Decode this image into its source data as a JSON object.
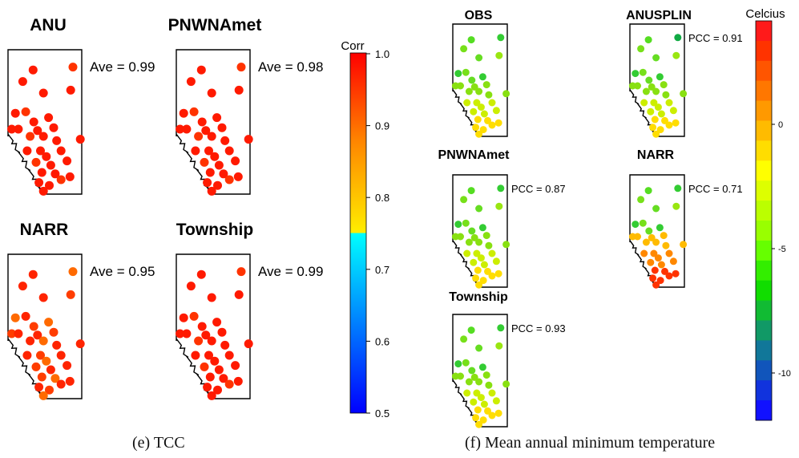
{
  "panel_e": {
    "caption": "(e) TCC",
    "legend_title": "Corr",
    "legend_ticks": [
      "1.0",
      "0.9",
      "0.8",
      "0.7",
      "0.6",
      "0.5"
    ],
    "maps": [
      {
        "key": "anu",
        "title": "ANU",
        "stat": "Ave = 0.99"
      },
      {
        "key": "pnwnamet",
        "title": "PNWNAmet",
        "stat": "Ave = 0.98"
      },
      {
        "key": "narr",
        "title": "NARR",
        "stat": "Ave = 0.95"
      },
      {
        "key": "township",
        "title": "Township",
        "stat": "Ave = 0.99"
      }
    ]
  },
  "panel_f": {
    "caption": "(f) Mean annual minimum temperature",
    "legend_title": "Celcius",
    "legend_ticks": [
      "0",
      "-5",
      "-10"
    ],
    "maps": [
      {
        "key": "obs",
        "title": "OBS",
        "stat": ""
      },
      {
        "key": "anusplin",
        "title": "ANUSPLIN",
        "stat": "PCC = 0.91"
      },
      {
        "key": "pnwnamet",
        "title": "PNWNAmet",
        "stat": "PCC = 0.87"
      },
      {
        "key": "narr",
        "title": "NARR",
        "stat": "PCC = 0.71"
      },
      {
        "key": "township",
        "title": "Township",
        "stat": "PCC = 0.93"
      }
    ]
  },
  "colors": {
    "tcc_high": "#ff0000",
    "tcc_mid": "#ffff00",
    "tcc_low": "#0000ff",
    "temp_warm": "#ff0000",
    "temp_zero": "#ffff00",
    "temp_cold": "#0000ff"
  }
}
